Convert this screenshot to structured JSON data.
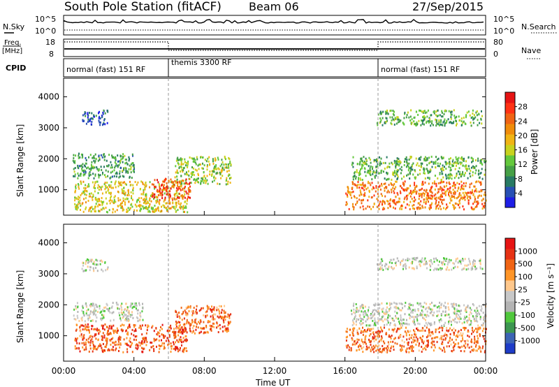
{
  "header": {
    "station": "South Pole Station (fitACF)",
    "beam": "Beam 06",
    "date": "27/Sep/2015"
  },
  "panels": {
    "nsky_label": "N.Sky",
    "nsearch_label": "N.Search",
    "nsky_ticks": [
      "10^5",
      "10^0"
    ],
    "nsearch_ticks": [
      "10^5",
      "10^0"
    ],
    "freq_label_1": "Freq.",
    "freq_label_2": "[MHz]",
    "freq_ticks": [
      "18",
      "8"
    ],
    "nave_label": "Nave",
    "nave_ticks": [
      "80",
      "0"
    ],
    "cpid_label": "CPID",
    "cpid_segments": [
      {
        "start": 0,
        "end": 6,
        "label": "normal (fast) 151 RF"
      },
      {
        "start": 6,
        "end": 18,
        "label": "themis 3300 RF"
      },
      {
        "start": 18,
        "end": 24,
        "label": "normal (fast) 151 RF"
      }
    ]
  },
  "chart_data": [
    {
      "type": "heatmap",
      "ylabel": "Slant Range [km]",
      "y_ticks": [
        1000,
        2000,
        3000,
        4000
      ],
      "ylim": [
        180,
        4600
      ],
      "xlim": [
        0,
        24
      ],
      "colorbar": {
        "label": "Power [dB]",
        "ticks": [
          "4",
          "8",
          "12",
          "16",
          "20",
          "24",
          "28"
        ],
        "colors": [
          "#1e1ee6",
          "#2850b4",
          "#287a64",
          "#46a046",
          "#64c83c",
          "#c8d21e",
          "#f0b414",
          "#f08c0a",
          "#f06414",
          "#ff3214",
          "#e61414"
        ]
      },
      "regions": [
        {
          "x": [
            0.6,
            7.0
          ],
          "y": [
            300,
            1300
          ],
          "v": 0.55
        },
        {
          "x": [
            0.5,
            4.0
          ],
          "y": [
            1400,
            2200
          ],
          "v": 0.3
        },
        {
          "x": [
            6.3,
            9.5
          ],
          "y": [
            1200,
            2100
          ],
          "v": 0.45
        },
        {
          "x": [
            5.0,
            7.2
          ],
          "y": [
            700,
            1400
          ],
          "v": 0.85
        },
        {
          "x": [
            1.0,
            2.5
          ],
          "y": [
            3100,
            3600
          ],
          "v": 0.1
        },
        {
          "x": [
            16.0,
            24.0
          ],
          "y": [
            400,
            1300
          ],
          "v": 0.75
        },
        {
          "x": [
            16.3,
            24.0
          ],
          "y": [
            1350,
            2100
          ],
          "v": 0.35
        },
        {
          "x": [
            17.8,
            23.8
          ],
          "y": [
            3100,
            3600
          ],
          "v": 0.35
        }
      ]
    },
    {
      "type": "heatmap",
      "ylabel": "Slant Range [km]",
      "y_ticks": [
        1000,
        2000,
        3000,
        4000
      ],
      "ylim": [
        180,
        4600
      ],
      "xlim": [
        0,
        24
      ],
      "colorbar": {
        "label": "Velocity [m s⁻¹]",
        "ticks": [
          "1000",
          "500",
          "100",
          "25",
          "-25",
          "-100",
          "-500",
          "-1000"
        ],
        "colors": [
          "#1e3cc8",
          "#3c64b4",
          "#3c9650",
          "#50c83c",
          "#b4b4b4",
          "#c8c8c8",
          "#ffc88c",
          "#ff9628",
          "#f06414",
          "#e63214",
          "#e61414"
        ]
      },
      "regions": [
        {
          "x": [
            0.6,
            7.0
          ],
          "y": [
            500,
            1400
          ],
          "v": 0.82
        },
        {
          "x": [
            0.5,
            4.5
          ],
          "y": [
            1500,
            2100
          ],
          "v": 0.45
        },
        {
          "x": [
            6.3,
            9.5
          ],
          "y": [
            1100,
            2000
          ],
          "v": 0.8
        },
        {
          "x": [
            16.0,
            24.0
          ],
          "y": [
            500,
            1300
          ],
          "v": 0.78
        },
        {
          "x": [
            16.3,
            24.0
          ],
          "y": [
            1350,
            2100
          ],
          "v": 0.45
        },
        {
          "x": [
            17.8,
            23.8
          ],
          "y": [
            3150,
            3550
          ],
          "v": 0.45
        },
        {
          "x": [
            1.0,
            2.5
          ],
          "y": [
            3100,
            3500
          ],
          "v": 0.45
        }
      ]
    }
  ],
  "x_axis": {
    "label": "Time UT",
    "ticks": [
      "00:00",
      "04:00",
      "08:00",
      "12:00",
      "16:00",
      "20:00",
      "00:00"
    ]
  }
}
